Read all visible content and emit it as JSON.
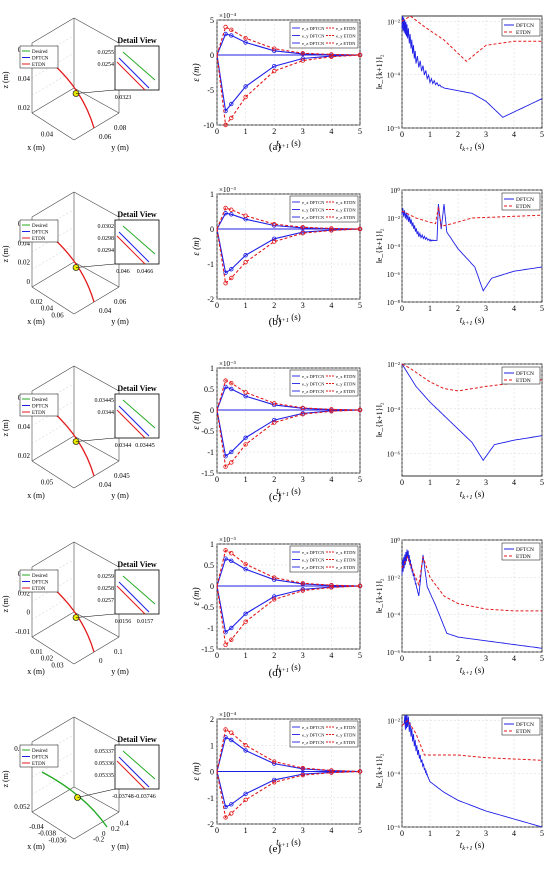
{
  "labels": [
    "(a)",
    "(b)",
    "(c)",
    "(d)",
    "(e)"
  ],
  "detail_view_title": "Detail View",
  "legend3d": [
    "Desired",
    "DFTCN",
    "ETDN"
  ],
  "legend_err": [
    "DFTCN",
    "ETDN"
  ],
  "legend_mid": [
    "e_x DFTCN",
    "e_y DFTCN",
    "e_z DFTCN",
    "e_x ETDN",
    "e_y ETDN",
    "e_z ETDN"
  ],
  "axis_text": {
    "z": "z (m)",
    "x": "x (m)",
    "y": "y (m)",
    "eps": "ε (m)",
    "t": "t_{k+1} (s)",
    "enorm": "‖e_{k+1}‖₂"
  },
  "colors": {
    "dftcn": "#1f1fe6",
    "etdn": "#e31a1c",
    "desired": "#22aa22",
    "marker": "#e6e600"
  },
  "chart_data": [
    {
      "panel": "a",
      "plot3d": {
        "z_ticks": [
          "0.06",
          "0.04",
          "0.02"
        ],
        "x_ticks": [
          "0.04"
        ],
        "y_ticks": [
          "0.06",
          "0.08"
        ],
        "detail_y": [
          "0.0255",
          "0.0254"
        ],
        "detail_x": [
          "0.0323"
        ]
      },
      "error": {
        "type": "line",
        "exponent": "×10⁻⁴",
        "ylim": [
          -10,
          5
        ],
        "yticks": [
          5,
          0,
          -5,
          -10
        ],
        "t": [
          0,
          0.3,
          0.5,
          1,
          2,
          3,
          4,
          5
        ],
        "series": [
          {
            "name": "DFTCN",
            "values": [
              0,
              3,
              2.8,
              1.8,
              0.6,
              0.15,
              0.05,
              0
            ]
          },
          {
            "name": "DFTCN",
            "values": [
              0,
              -8,
              -7,
              -4.5,
              -1.6,
              -0.5,
              -0.15,
              0
            ]
          },
          {
            "name": "ETDN",
            "values": [
              0,
              4,
              3.6,
              2.4,
              0.9,
              0.25,
              0.08,
              0
            ]
          },
          {
            "name": "ETDN",
            "values": [
              0,
              -10,
              -9,
              -6,
              -2.3,
              -0.8,
              -0.25,
              0
            ]
          }
        ]
      },
      "norm": {
        "type": "line",
        "ylog": [
          -6,
          -1.8
        ],
        "yticks": [
          "10⁻²",
          "10⁻⁴",
          "10⁻⁶"
        ],
        "dftcn": [
          [
            0,
            -2
          ],
          [
            0.2,
            -2.4
          ],
          [
            0.5,
            -3.4
          ],
          [
            1,
            -4.2
          ],
          [
            1.5,
            -4.5
          ],
          [
            2,
            -4.6
          ],
          [
            2.5,
            -4.7
          ],
          [
            3,
            -5
          ],
          [
            3.6,
            -5.6
          ],
          [
            4.2,
            -5.3
          ],
          [
            5,
            -4.9
          ]
        ],
        "dftcn_osc": [
          0,
          1.5,
          0.8
        ],
        "etdn": [
          [
            0,
            -2
          ],
          [
            0.3,
            -1.8
          ],
          [
            0.8,
            -2.2
          ],
          [
            1.5,
            -2.7
          ],
          [
            2.3,
            -3.5
          ],
          [
            3,
            -2.9
          ],
          [
            4,
            -2.75
          ],
          [
            5,
            -2.75
          ]
        ]
      }
    },
    {
      "panel": "b",
      "plot3d": {
        "z_ticks": [
          "0.06",
          "0.04",
          "0.02",
          "0"
        ],
        "x_ticks": [
          "0.02",
          "0.04",
          "0.06"
        ],
        "y_ticks": [
          "0.04",
          "0.06"
        ],
        "detail_y": [
          "0.0302",
          "0.0298",
          "0.0294"
        ],
        "detail_x": [
          "0.046",
          "0.0466"
        ]
      },
      "error": {
        "type": "line",
        "exponent": "×10⁻³",
        "ylim": [
          -2,
          1
        ],
        "yticks": [
          1,
          0,
          -1,
          -2
        ],
        "t": [
          0,
          0.3,
          0.5,
          1,
          2,
          3,
          4,
          5
        ],
        "series": [
          {
            "name": "DFTCN",
            "values": [
              0,
              0.45,
              0.42,
              0.28,
              0.1,
              0.03,
              0.01,
              0
            ]
          },
          {
            "name": "DFTCN",
            "values": [
              0,
              -1.25,
              -1.15,
              -0.75,
              -0.28,
              -0.09,
              -0.03,
              0
            ]
          },
          {
            "name": "ETDN",
            "values": [
              0,
              0.6,
              0.55,
              0.38,
              0.14,
              0.05,
              0.015,
              0
            ]
          },
          {
            "name": "ETDN",
            "values": [
              0,
              -1.55,
              -1.4,
              -0.95,
              -0.36,
              -0.12,
              -0.04,
              0
            ]
          }
        ]
      },
      "norm": {
        "type": "line",
        "ylog": [
          -8,
          0
        ],
        "yticks": [
          "10⁰",
          "10⁻²",
          "10⁻⁴",
          "10⁻⁶",
          "10⁻⁸"
        ],
        "dftcn": [
          [
            0,
            -1.5
          ],
          [
            0.3,
            -2.2
          ],
          [
            0.6,
            -3.2
          ],
          [
            1,
            -3.6
          ],
          [
            1.25,
            -3.6
          ],
          [
            1.3,
            -1
          ],
          [
            1.4,
            -2.8
          ],
          [
            1.5,
            -1
          ],
          [
            1.6,
            -3
          ],
          [
            2,
            -4.2
          ],
          [
            2.6,
            -5.5
          ],
          [
            2.9,
            -7.2
          ],
          [
            3.2,
            -6.3
          ],
          [
            4,
            -5.8
          ],
          [
            5,
            -5.5
          ]
        ],
        "dftcn_osc": [
          0,
          1.2,
          0.8
        ],
        "etdn": [
          [
            0,
            -1.5
          ],
          [
            0.5,
            -2
          ],
          [
            1,
            -2.3
          ],
          [
            1.2,
            -2.4
          ],
          [
            1.3,
            -1.2
          ],
          [
            1.4,
            -2.6
          ],
          [
            1.8,
            -2.4
          ],
          [
            2.5,
            -2
          ],
          [
            5,
            -1.8
          ]
        ]
      }
    },
    {
      "panel": "c",
      "plot3d": {
        "z_ticks": [
          "0.06",
          "0.04",
          "0.02"
        ],
        "x_ticks": [
          "0.05"
        ],
        "y_ticks": [
          "0.04",
          "0.045"
        ],
        "detail_y": [
          "0.03445",
          "0.0344"
        ],
        "detail_x": [
          "0.0344",
          "0.03445"
        ]
      },
      "error": {
        "type": "line",
        "exponent": "×10⁻³",
        "ylim": [
          -1.5,
          1
        ],
        "yticks": [
          1,
          0.5,
          0,
          -0.5,
          -1,
          -1.5
        ],
        "t": [
          0,
          0.3,
          0.5,
          1,
          2,
          3,
          4,
          5
        ],
        "series": [
          {
            "name": "DFTCN",
            "values": [
              0,
              0.55,
              0.5,
              0.33,
              0.12,
              0.04,
              0.01,
              0
            ]
          },
          {
            "name": "DFTCN",
            "values": [
              0,
              -1.1,
              -1.0,
              -0.66,
              -0.24,
              -0.08,
              -0.02,
              0
            ]
          },
          {
            "name": "ETDN",
            "values": [
              0,
              0.7,
              0.64,
              0.42,
              0.16,
              0.05,
              0.015,
              0
            ]
          },
          {
            "name": "ETDN",
            "values": [
              0,
              -1.35,
              -1.25,
              -0.82,
              -0.3,
              -0.1,
              -0.03,
              0
            ]
          }
        ]
      },
      "norm": {
        "type": "line",
        "ylog": [
          -7,
          -2
        ],
        "yticks": [
          "10⁻²",
          "10⁻⁴",
          "10⁻⁶"
        ],
        "dftcn": [
          [
            0,
            -2
          ],
          [
            0.5,
            -3
          ],
          [
            1,
            -3.7
          ],
          [
            1.5,
            -4.3
          ],
          [
            2,
            -4.9
          ],
          [
            2.5,
            -5.5
          ],
          [
            2.9,
            -6.3
          ],
          [
            3.3,
            -5.6
          ],
          [
            4,
            -5.4
          ],
          [
            5,
            -5.2
          ]
        ],
        "dftcn_osc": [
          0,
          0,
          0
        ],
        "etdn": [
          [
            0,
            -2
          ],
          [
            0.3,
            -2.2
          ],
          [
            1,
            -2.8
          ],
          [
            1.5,
            -3.1
          ],
          [
            2,
            -3.2
          ],
          [
            3,
            -3
          ],
          [
            4,
            -2.85
          ],
          [
            5,
            -2.7
          ]
        ]
      }
    },
    {
      "panel": "d",
      "plot3d": {
        "z_ticks": [
          "0.04",
          "0.02",
          "0",
          "-0.01"
        ],
        "x_ticks": [
          "0.01",
          "0.02",
          "0.03"
        ],
        "y_ticks": [
          "0",
          "0.1"
        ],
        "detail_y": [
          "0.0259",
          "0.0258",
          "0.0257"
        ],
        "detail_x": [
          "0.0156",
          "0.0157"
        ]
      },
      "error": {
        "type": "line",
        "exponent": "×10⁻³",
        "ylim": [
          -1.5,
          1
        ],
        "yticks": [
          1,
          0.5,
          0,
          -0.5,
          -1,
          -1.5
        ],
        "t": [
          0,
          0.3,
          0.5,
          1,
          2,
          3,
          4,
          5
        ],
        "series": [
          {
            "name": "DFTCN",
            "values": [
              0,
              0.65,
              0.6,
              0.4,
              0.15,
              0.05,
              0.015,
              0
            ]
          },
          {
            "name": "DFTCN",
            "values": [
              0,
              -1.1,
              -1.0,
              -0.66,
              -0.25,
              -0.08,
              -0.025,
              0
            ]
          },
          {
            "name": "ETDN",
            "values": [
              0,
              0.85,
              0.78,
              0.52,
              0.2,
              0.065,
              0.02,
              0
            ]
          },
          {
            "name": "ETDN",
            "values": [
              0,
              -1.4,
              -1.28,
              -0.85,
              -0.32,
              -0.11,
              -0.035,
              0
            ]
          }
        ]
      },
      "norm": {
        "type": "line",
        "ylog": [
          -6,
          0
        ],
        "yticks": [
          "10⁰",
          "10⁻²",
          "10⁻⁴",
          "10⁻⁶"
        ],
        "dftcn": [
          [
            0,
            -1.5
          ],
          [
            0.2,
            -0.7
          ],
          [
            0.4,
            -1.8
          ],
          [
            0.6,
            -3
          ],
          [
            0.75,
            -0.8
          ],
          [
            0.9,
            -2.5
          ],
          [
            1.2,
            -3.5
          ],
          [
            1.6,
            -5
          ],
          [
            2,
            -5.2
          ],
          [
            3,
            -5.4
          ],
          [
            4,
            -5.6
          ],
          [
            5,
            -5.8
          ]
        ],
        "dftcn_osc": [
          0,
          0.6,
          1.1
        ],
        "etdn": [
          [
            0,
            -1.5
          ],
          [
            0.2,
            -0.9
          ],
          [
            0.4,
            -1.7
          ],
          [
            0.6,
            -2.4
          ],
          [
            0.75,
            -0.9
          ],
          [
            1,
            -2
          ],
          [
            1.5,
            -3
          ],
          [
            2,
            -3.4
          ],
          [
            3,
            -3.7
          ],
          [
            4,
            -3.8
          ],
          [
            5,
            -3.8
          ]
        ]
      }
    },
    {
      "panel": "e",
      "plot3d": {
        "z_ticks": [
          "0.054",
          "0.052"
        ],
        "x_ticks": [
          "-0.04",
          "-0.038",
          "-0.036"
        ],
        "y_ticks": [
          "-0.2",
          "0",
          "0.2",
          "0.4"
        ],
        "detail_y": [
          "0.05337",
          "0.05336",
          "0.05335"
        ],
        "detail_x": [
          "-0.03748",
          "-0.03746"
        ]
      },
      "error": {
        "type": "line",
        "exponent": "×10⁻⁴",
        "ylim": [
          -2,
          2
        ],
        "yticks": [
          2,
          1,
          0,
          -1,
          -2
        ],
        "t": [
          0,
          0.3,
          0.5,
          1,
          2,
          3,
          4,
          5
        ],
        "series": [
          {
            "name": "DFTCN",
            "values": [
              0,
              1.3,
              1.2,
              0.8,
              0.3,
              0.1,
              0.03,
              0
            ]
          },
          {
            "name": "DFTCN",
            "values": [
              0,
              -1.35,
              -1.25,
              -0.85,
              -0.32,
              -0.1,
              -0.03,
              0
            ]
          },
          {
            "name": "ETDN",
            "values": [
              0,
              1.6,
              1.48,
              1.0,
              0.38,
              0.13,
              0.04,
              0
            ]
          },
          {
            "name": "ETDN",
            "values": [
              0,
              -1.75,
              -1.6,
              -1.08,
              -0.41,
              -0.14,
              -0.045,
              0
            ]
          }
        ]
      },
      "norm": {
        "type": "line",
        "ylog": [
          -6,
          -1.8
        ],
        "yticks": [
          "10⁻²",
          "10⁻⁴",
          "10⁻⁶"
        ],
        "dftcn": [
          [
            0,
            -2.2
          ],
          [
            0.2,
            -2
          ],
          [
            0.5,
            -3
          ],
          [
            0.8,
            -3.8
          ],
          [
            1,
            -4.3
          ],
          [
            1.5,
            -4.7
          ],
          [
            2,
            -5
          ],
          [
            3,
            -5.4
          ],
          [
            4,
            -5.7
          ],
          [
            5,
            -6
          ]
        ],
        "dftcn_osc": [
          0.1,
          1.0,
          0.8
        ],
        "etdn": [
          [
            0,
            -2.2
          ],
          [
            0.2,
            -2
          ],
          [
            0.5,
            -2.5
          ],
          [
            0.8,
            -3.3
          ],
          [
            1,
            -3.3
          ],
          [
            2,
            -3.3
          ],
          [
            3,
            -3.4
          ],
          [
            4,
            -3.45
          ],
          [
            5,
            -3.5
          ]
        ]
      }
    }
  ]
}
